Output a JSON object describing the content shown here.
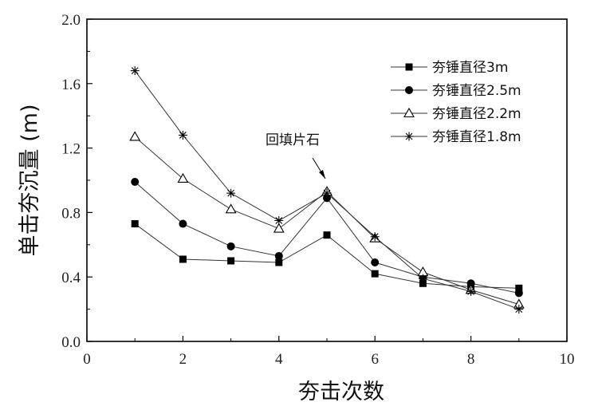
{
  "chart_data": {
    "type": "line",
    "xlabel": "夯击次数",
    "ylabel": "单击夯沉量 (m)",
    "xlim": [
      0,
      10
    ],
    "ylim": [
      0,
      2.0
    ],
    "xticks": [
      "0",
      "2",
      "4",
      "6",
      "8",
      "10"
    ],
    "yticks": [
      "0.0",
      "0.4",
      "0.8",
      "1.2",
      "1.6",
      "2.0"
    ],
    "grid": false,
    "legend_position": "top-right",
    "x": [
      1,
      2,
      3,
      4,
      5,
      6,
      7,
      8,
      9
    ],
    "series": [
      {
        "name": "夯锤直径3m",
        "marker": "square-filled",
        "values": [
          0.73,
          0.51,
          0.5,
          0.49,
          0.66,
          0.42,
          0.36,
          0.34,
          0.33
        ]
      },
      {
        "name": "夯锤直径2.5m",
        "marker": "circle-filled",
        "values": [
          0.99,
          0.73,
          0.59,
          0.53,
          0.89,
          0.49,
          0.4,
          0.36,
          0.3
        ]
      },
      {
        "name": "夯锤直径2.2m",
        "marker": "triangle-open",
        "values": [
          1.27,
          1.01,
          0.82,
          0.7,
          0.93,
          0.64,
          0.43,
          0.32,
          0.23
        ]
      },
      {
        "name": "夯锤直径1.8m",
        "marker": "asterisk",
        "values": [
          1.68,
          1.28,
          0.92,
          0.75,
          0.92,
          0.65,
          0.39,
          0.31,
          0.2
        ]
      }
    ],
    "annotations": [
      {
        "text": "回填片石",
        "points_to": {
          "x": 5,
          "y": 0.93
        }
      }
    ]
  }
}
